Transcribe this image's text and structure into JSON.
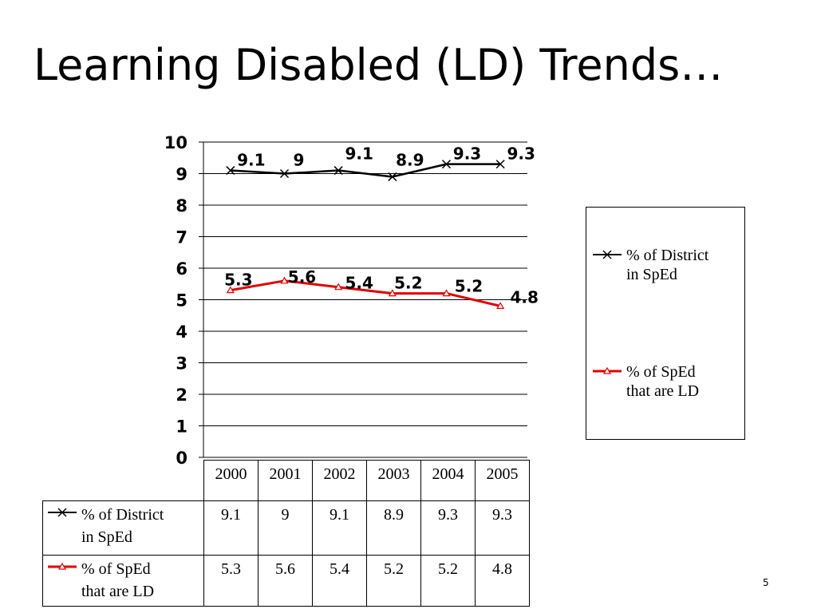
{
  "title": "Learning Disabled (LD) Trends…",
  "slide_number": "5",
  "colors": {
    "series1": "#000000",
    "series2": "#e00000"
  },
  "chart_data": {
    "type": "line",
    "title": "",
    "xlabel": "",
    "ylabel": "",
    "ylim": [
      0,
      10
    ],
    "ytick_labels": [
      "0",
      "1",
      "2",
      "3",
      "4",
      "5",
      "6",
      "7",
      "8",
      "9",
      "10"
    ],
    "categories": [
      "2000",
      "2001",
      "2002",
      "2003",
      "2004",
      "2005"
    ],
    "grid": "horizontal",
    "legend_position": "right",
    "data_table": true,
    "series": [
      {
        "name": "% of District in SpEd",
        "marker": "x",
        "values": [
          9.1,
          9,
          9.1,
          8.9,
          9.3,
          9.3
        ],
        "labels": [
          "9.1",
          "9",
          "9.1",
          "8.9",
          "9.3",
          "9.3"
        ]
      },
      {
        "name": "% of SpEd that are LD",
        "marker": "triangle",
        "values": [
          5.3,
          5.6,
          5.4,
          5.2,
          5.2,
          4.8
        ],
        "labels": [
          "5.3",
          "5.6",
          "5.4",
          "5.2",
          "5.2",
          "4.8"
        ]
      }
    ]
  },
  "legend": {
    "items": [
      {
        "line1": "% of District",
        "line2": "in SpEd"
      },
      {
        "line1": "% of SpEd",
        "line2": "that are LD"
      }
    ]
  }
}
